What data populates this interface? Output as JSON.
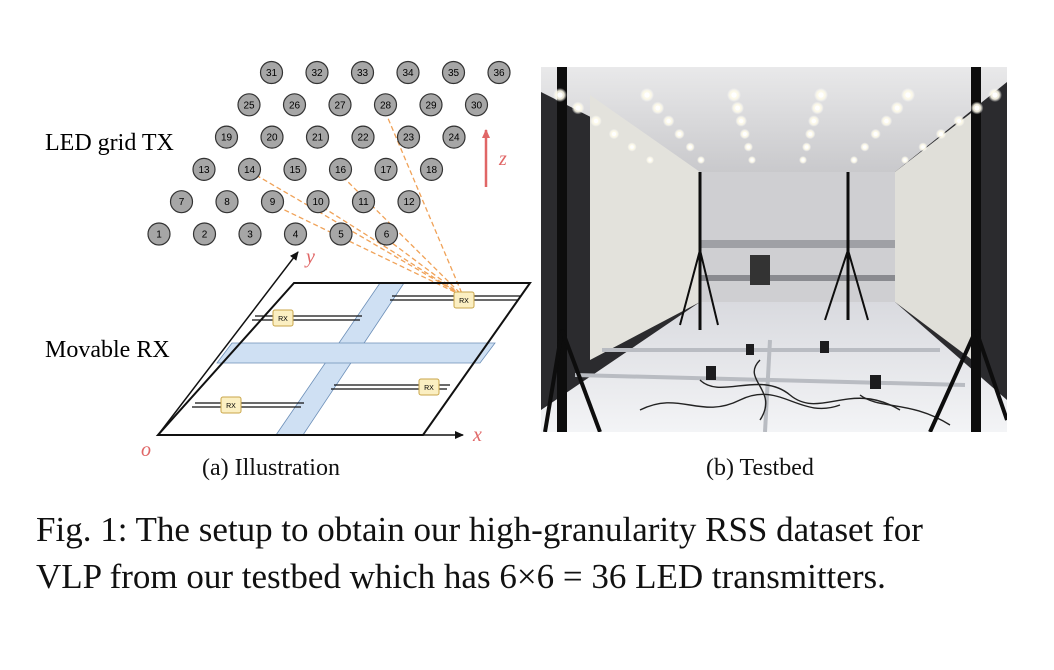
{
  "labels": {
    "tx": "LED grid TX",
    "rx": "Movable RX",
    "rx_box": "RX",
    "axis_x": "x",
    "axis_y": "y",
    "axis_z": "z",
    "origin": "o"
  },
  "subcaptions": {
    "a": "(a) Illustration",
    "b": "(b) Testbed"
  },
  "caption": {
    "line1": "Fig. 1: The setup to obtain our high-granularity RSS dataset for",
    "line2": "VLP from our testbed which has 6×6 = 36 LED transmitters."
  },
  "leds": [
    [
      "1",
      "2",
      "3",
      "4",
      "5",
      "6"
    ],
    [
      "7",
      "8",
      "9",
      "10",
      "11",
      "12"
    ],
    [
      "13",
      "14",
      "15",
      "16",
      "17",
      "18"
    ],
    [
      "19",
      "20",
      "21",
      "22",
      "23",
      "24"
    ],
    [
      "25",
      "26",
      "27",
      "28",
      "29",
      "30"
    ],
    [
      "31",
      "32",
      "33",
      "34",
      "35",
      "36"
    ]
  ],
  "colors": {
    "led_fill": "#a6a6a6",
    "track_fill": "#cfe0f3",
    "rx_fill": "#fbefc2",
    "beam": "#f0a258",
    "axis_accent": "#e06666"
  },
  "photo_icon": "testbed-photo"
}
